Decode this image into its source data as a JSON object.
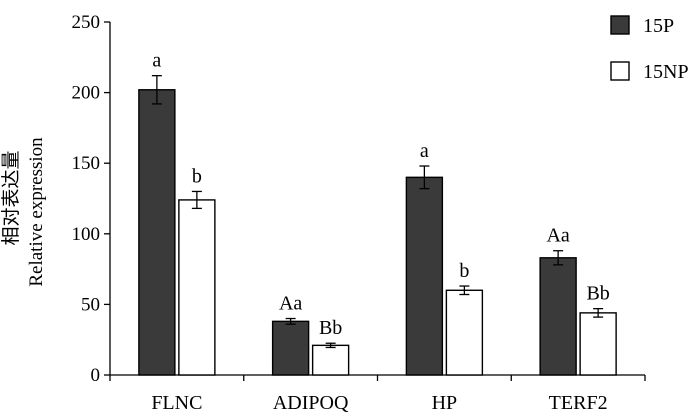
{
  "chart_data": {
    "type": "bar",
    "ylabel_cn": "相对表达量",
    "ylabel": "Relative expression",
    "xlabel": "",
    "ylim": [
      0,
      250
    ],
    "yticks": [
      0,
      50,
      100,
      150,
      200,
      250
    ],
    "categories": [
      "FLNC",
      "ADIPOQ",
      "HP",
      "TERF2"
    ],
    "series": [
      {
        "name": "15P",
        "color": "#3a3a3a",
        "values": [
          202,
          38,
          140,
          83
        ],
        "errors": [
          10,
          2,
          8,
          5
        ],
        "labels": [
          "a",
          "Aa",
          "a",
          "Aa"
        ]
      },
      {
        "name": "15NP",
        "color": "#ffffff",
        "values": [
          124,
          21,
          60,
          44
        ],
        "errors": [
          6,
          1.5,
          3,
          3
        ],
        "labels": [
          "b",
          "Bb",
          "b",
          "Bb"
        ]
      }
    ],
    "legend_position": "top-right",
    "grid": false
  }
}
